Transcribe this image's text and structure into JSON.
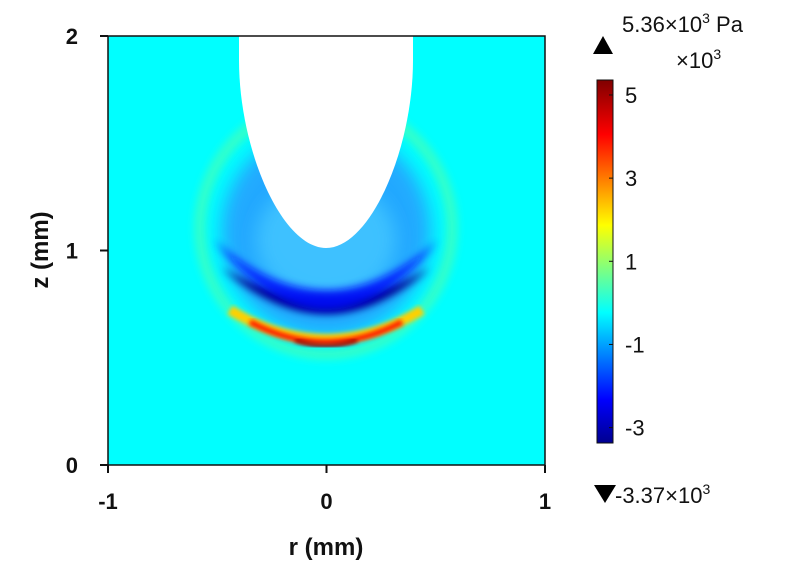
{
  "chart_data": {
    "type": "heatmap",
    "title": "",
    "xlabel": "r (mm)",
    "ylabel": "z (mm)",
    "xlim": [
      -1,
      1
    ],
    "ylim": [
      0,
      2
    ],
    "x_ticks": [
      "-1",
      "0",
      "1"
    ],
    "y_ticks": [
      "0",
      "1",
      "2"
    ],
    "x_tick_values": [
      -1,
      0,
      1
    ],
    "y_tick_values": [
      0,
      1,
      2
    ],
    "colormap": "jet",
    "background_value": 0,
    "colorbar": {
      "min": -3.37,
      "max": 5.36,
      "multiplier_label": "×10",
      "multiplier_exponent": "3",
      "ticks": [
        "5",
        "3",
        "1",
        "-1",
        "-3"
      ],
      "tick_values": [
        5,
        3,
        1,
        -1,
        -3
      ],
      "max_annotation": "5.36×10",
      "max_annotation_exponent": "3",
      "max_annotation_unit": " Pa",
      "min_annotation": "-3.37×10",
      "min_annotation_exponent": "3"
    },
    "features": {
      "void_region": {
        "shape": "parabolic-tip",
        "tip_z": 1.0,
        "top_half_width": 0.4
      },
      "negative_shell": {
        "value": -3.3,
        "outer_radius": 0.48,
        "center_z": 1.02
      },
      "positive_front": {
        "value": 5.36,
        "radius": 0.49,
        "center_z": 1.02
      },
      "weak_outer_ring": {
        "value": 0.6,
        "radius": 0.56
      }
    }
  }
}
